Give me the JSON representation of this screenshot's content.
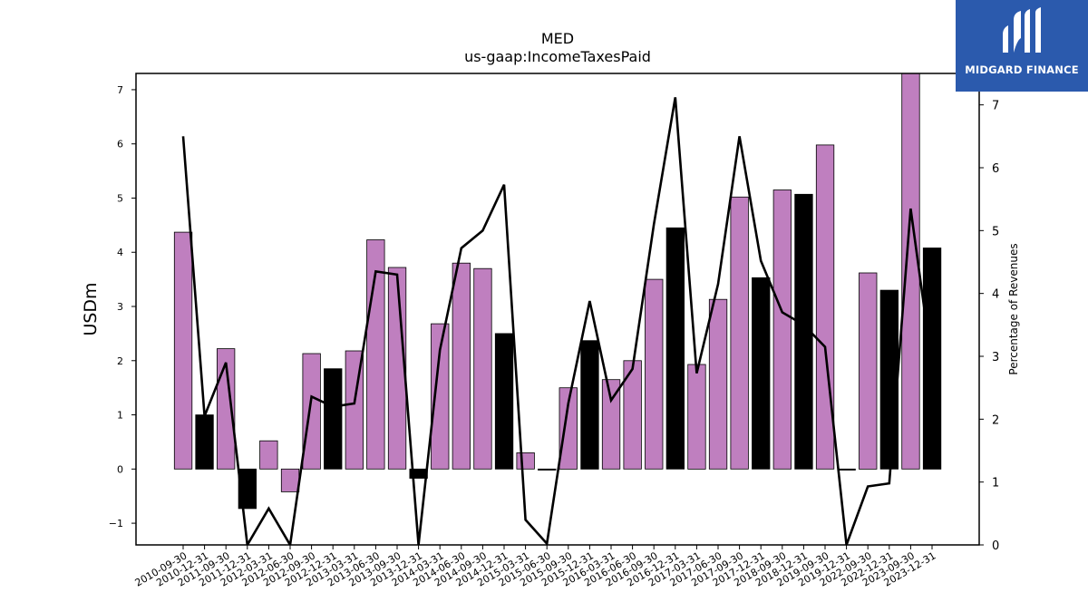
{
  "logo": {
    "text": "MIDGARD FINANCE",
    "icon": "midgard-logo-icon",
    "background": "#2b5aad"
  },
  "chart_data": {
    "type": "bar",
    "title": "MED",
    "subtitle": "us-gaap:IncomeTaxesPaid",
    "ylabel": "USDm",
    "y2label": "Percentage of Revenues",
    "ylim": [
      -1.4,
      7.3
    ],
    "y2lim": [
      0,
      7.5
    ],
    "yticks": [
      -1,
      0,
      1,
      2,
      3,
      4,
      5,
      6,
      7
    ],
    "y2ticks": [
      0,
      1,
      2,
      3,
      4,
      5,
      6,
      7
    ],
    "grid": false,
    "colors": {
      "bar_a": "#bf7fbf",
      "bar_b": "#000000",
      "line": "#000000"
    },
    "categories": [
      "2010-09-30",
      "2010-12-31",
      "2011-09-30",
      "2011-12-31",
      "2012-03-31",
      "2012-06-30",
      "2012-09-30",
      "2012-12-31",
      "2013-03-31",
      "2013-06-30",
      "2013-09-30",
      "2013-12-31",
      "2014-03-31",
      "2014-06-30",
      "2014-09-30",
      "2014-12-31",
      "2015-03-31",
      "2015-06-30",
      "2015-09-30",
      "2015-12-31",
      "2016-03-31",
      "2016-06-30",
      "2016-09-30",
      "2016-12-31",
      "2017-03-31",
      "2017-06-30",
      "2017-09-30",
      "2017-12-31",
      "2018-09-30",
      "2018-12-31",
      "2019-09-30",
      "2019-12-31",
      "2022-09-30",
      "2022-12-31",
      "2023-09-30",
      "2023-12-31"
    ],
    "series": [
      {
        "kind": "bar",
        "axis": "left",
        "values": [
          4.37,
          1.0,
          2.22,
          -0.73,
          0.52,
          -0.42,
          2.13,
          1.85,
          2.18,
          4.23,
          3.72,
          -0.17,
          2.68,
          3.8,
          3.7,
          2.5,
          0.3,
          0.0,
          1.5,
          2.37,
          1.65,
          2.0,
          3.5,
          4.45,
          1.93,
          3.13,
          5.02,
          3.53,
          5.15,
          5.07,
          5.98,
          -0.01,
          3.62,
          3.3,
          7.3,
          4.08
        ],
        "bar_colors": [
          "a",
          "b",
          "a",
          "b",
          "a",
          "a",
          "a",
          "b",
          "a",
          "a",
          "a",
          "b",
          "a",
          "a",
          "a",
          "b",
          "a",
          "b",
          "a",
          "b",
          "a",
          "a",
          "a",
          "b",
          "a",
          "a",
          "a",
          "b",
          "a",
          "b",
          "a",
          "b",
          "a",
          "b",
          "a",
          "b"
        ]
      },
      {
        "kind": "line",
        "axis": "right",
        "values": [
          6.5,
          2.05,
          2.9,
          -0.1,
          0.58,
          -0.1,
          2.36,
          2.2,
          2.25,
          4.35,
          4.3,
          0.0,
          3.1,
          4.72,
          5.0,
          5.73,
          0.4,
          0.02,
          2.25,
          3.88,
          2.3,
          2.8,
          5.1,
          7.12,
          2.73,
          4.15,
          6.5,
          4.52,
          3.7,
          3.5,
          3.15,
          0.0,
          0.93,
          0.98,
          5.35,
          2.85
        ]
      }
    ]
  }
}
